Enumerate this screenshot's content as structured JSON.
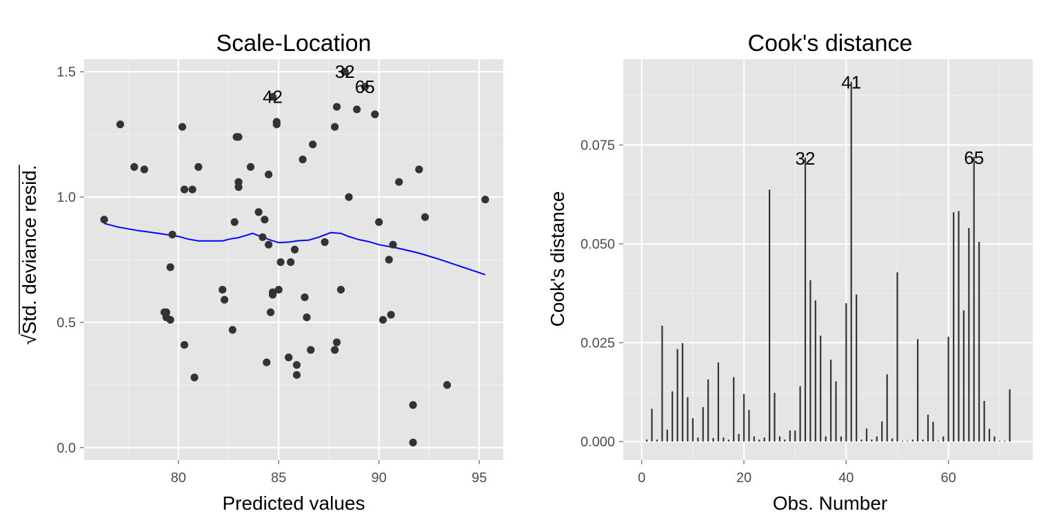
{
  "chart_data": [
    {
      "type": "scatter",
      "title": "Scale-Location",
      "xlabel": "Predicted values",
      "ylabel": "Std. deviance resid.",
      "ylabel_prefix": "√",
      "xlim": [
        75.3,
        96.2
      ],
      "ylim": [
        -0.05,
        1.55
      ],
      "xticks": [
        80,
        85,
        90,
        95
      ],
      "yticks": [
        0.0,
        0.5,
        1.0,
        1.5
      ],
      "xtick_labels": [
        "80",
        "85",
        "90",
        "95"
      ],
      "ytick_labels": [
        "0.0",
        "0.5",
        "1.0",
        "1.5"
      ],
      "grid": true,
      "background": "#e5e5e5",
      "point_color": "#333333",
      "smooth_color": "#0000ff",
      "points": [
        [
          76.3,
          0.91
        ],
        [
          77.1,
          1.29
        ],
        [
          77.8,
          1.12
        ],
        [
          78.3,
          1.11
        ],
        [
          79.3,
          0.54
        ],
        [
          79.4,
          0.52
        ],
        [
          79.4,
          0.54
        ],
        [
          79.6,
          0.51
        ],
        [
          79.6,
          0.72
        ],
        [
          79.7,
          0.85
        ],
        [
          80.2,
          1.28
        ],
        [
          80.3,
          1.03
        ],
        [
          80.3,
          0.41
        ],
        [
          80.7,
          1.03
        ],
        [
          80.8,
          0.28
        ],
        [
          81.0,
          1.12
        ],
        [
          82.2,
          0.63
        ],
        [
          82.3,
          0.59
        ],
        [
          82.7,
          0.47
        ],
        [
          82.8,
          0.9
        ],
        [
          82.9,
          1.24
        ],
        [
          83.0,
          1.24
        ],
        [
          83.0,
          1.04
        ],
        [
          83.0,
          1.06
        ],
        [
          83.6,
          1.12
        ],
        [
          84.0,
          0.94
        ],
        [
          84.2,
          0.84
        ],
        [
          84.3,
          0.91
        ],
        [
          84.4,
          0.34
        ],
        [
          84.5,
          1.09
        ],
        [
          84.5,
          0.81
        ],
        [
          84.6,
          0.54
        ],
        [
          84.7,
          1.4
        ],
        [
          84.7,
          0.62
        ],
        [
          84.7,
          0.61
        ],
        [
          84.9,
          1.29
        ],
        [
          84.9,
          1.3
        ],
        [
          85.0,
          0.63
        ],
        [
          85.1,
          0.74
        ],
        [
          85.5,
          0.36
        ],
        [
          85.6,
          0.74
        ],
        [
          85.8,
          0.79
        ],
        [
          85.9,
          0.33
        ],
        [
          85.9,
          0.29
        ],
        [
          86.2,
          1.15
        ],
        [
          86.3,
          0.6
        ],
        [
          86.4,
          0.52
        ],
        [
          86.6,
          0.39
        ],
        [
          86.7,
          1.21
        ],
        [
          87.3,
          0.82
        ],
        [
          87.8,
          1.28
        ],
        [
          87.8,
          0.39
        ],
        [
          87.9,
          0.42
        ],
        [
          87.9,
          1.36
        ],
        [
          88.1,
          0.63
        ],
        [
          88.3,
          1.5
        ],
        [
          88.5,
          1.0
        ],
        [
          88.9,
          1.35
        ],
        [
          89.3,
          1.44
        ],
        [
          89.8,
          1.33
        ],
        [
          90.0,
          0.9
        ],
        [
          90.2,
          0.51
        ],
        [
          90.5,
          0.75
        ],
        [
          90.6,
          0.53
        ],
        [
          90.7,
          0.81
        ],
        [
          91.0,
          1.06
        ],
        [
          91.7,
          0.17
        ],
        [
          91.7,
          0.02
        ],
        [
          92.0,
          1.11
        ],
        [
          92.3,
          0.92
        ],
        [
          93.4,
          0.25
        ],
        [
          95.3,
          0.99
        ]
      ],
      "smooth": [
        [
          76.3,
          0.895
        ],
        [
          77.0,
          0.88
        ],
        [
          78.0,
          0.866
        ],
        [
          79.0,
          0.855
        ],
        [
          80.0,
          0.843
        ],
        [
          80.5,
          0.832
        ],
        [
          81.0,
          0.825
        ],
        [
          82.2,
          0.825
        ],
        [
          82.6,
          0.833
        ],
        [
          83.0,
          0.838
        ],
        [
          83.3,
          0.845
        ],
        [
          83.7,
          0.855
        ],
        [
          84.2,
          0.84
        ],
        [
          84.6,
          0.828
        ],
        [
          85.0,
          0.818
        ],
        [
          85.5,
          0.82
        ],
        [
          86.0,
          0.826
        ],
        [
          86.5,
          0.828
        ],
        [
          87.0,
          0.84
        ],
        [
          87.6,
          0.858
        ],
        [
          88.1,
          0.855
        ],
        [
          88.5,
          0.842
        ],
        [
          89.0,
          0.83
        ],
        [
          89.5,
          0.822
        ],
        [
          90.0,
          0.81
        ],
        [
          91.0,
          0.795
        ],
        [
          92.0,
          0.776
        ],
        [
          93.0,
          0.752
        ],
        [
          94.0,
          0.725
        ],
        [
          95.3,
          0.69
        ]
      ],
      "annotations": [
        {
          "label": "32",
          "x": 88.3,
          "y": 1.5
        },
        {
          "label": "65",
          "x": 89.3,
          "y": 1.44
        },
        {
          "label": "42",
          "x": 84.7,
          "y": 1.4
        }
      ]
    },
    {
      "type": "bar",
      "title": "Cook's distance",
      "xlabel": "Obs. Number",
      "ylabel": "Cook's distance",
      "xlim": [
        -3.6,
        76.5
      ],
      "ylim": [
        -0.0047,
        0.0967
      ],
      "xticks": [
        0,
        20,
        40,
        60
      ],
      "yticks": [
        0.0,
        0.025,
        0.05,
        0.075
      ],
      "xtick_labels": [
        "0",
        "20",
        "40",
        "60"
      ],
      "ytick_labels": [
        "0.000",
        "0.025",
        "0.050",
        "0.075"
      ],
      "grid": true,
      "background": "#e5e5e5",
      "bar_color": "#333333",
      "values": [
        0.0005,
        0.0083,
        0.0005,
        0.0293,
        0.003,
        0.0127,
        0.0234,
        0.0249,
        0.0112,
        0.0059,
        0.001,
        0.0087,
        0.0157,
        0.0009,
        0.02,
        0.001,
        0.0005,
        0.0163,
        0.0019,
        0.012,
        0.008,
        0.0013,
        0.0005,
        0.001,
        0.0637,
        0.0123,
        0.0013,
        0.0005,
        0.0028,
        0.0028,
        0.014,
        0.0718,
        0.0408,
        0.0357,
        0.0268,
        0.0013,
        0.0207,
        0.0152,
        0.0013,
        0.035,
        0.091,
        0.0372,
        0.0005,
        0.0033,
        0.0005,
        0.0013,
        0.0051,
        0.017,
        0.0008,
        0.0428,
        0.0002,
        0.0002,
        0.0005,
        0.0259,
        0.0005,
        0.0068,
        0.005,
        0.0002,
        0.0013,
        0.0265,
        0.058,
        0.0583,
        0.0332,
        0.054,
        0.072,
        0.0505,
        0.0103,
        0.0032,
        0.0013,
        0.0002,
        0.0002,
        0.0132
      ],
      "annotations": [
        {
          "label": "41",
          "x": 41,
          "y": 0.091
        },
        {
          "label": "32",
          "x": 32,
          "y": 0.0718
        },
        {
          "label": "65",
          "x": 65,
          "y": 0.072
        }
      ]
    }
  ]
}
